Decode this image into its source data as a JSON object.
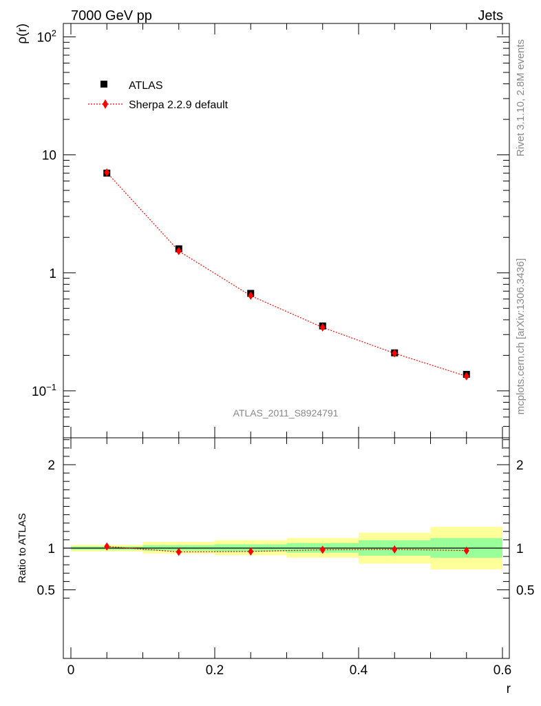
{
  "header": {
    "left_title": "7000 GeV pp",
    "right_title": "Jets"
  },
  "side_text": {
    "rivet": "Rivet 3.1.10,  2.8M events",
    "mcplots": "mcplots.cern.ch [arXiv:1306.3436]"
  },
  "analysis_label": "ATLAS_2011_S8924791",
  "colors": {
    "mc": "#ff0000",
    "data": "#000000",
    "band_inner": "#99ff99",
    "band_outer": "#ffff99"
  },
  "chart_data": [
    {
      "type": "scatter",
      "ylabel": "ρ(r)",
      "xlabel": "",
      "yscale": "log",
      "xlim": [
        0,
        0.6
      ],
      "ylim": [
        0.04,
        130
      ],
      "y_ticks": [
        {
          "value": 100,
          "base": "10",
          "exp": "2"
        },
        {
          "value": 10,
          "base": "10",
          "exp": ""
        },
        {
          "value": 1,
          "base": "1",
          "exp": ""
        },
        {
          "value": 0.1,
          "base": "10",
          "exp": "−1"
        }
      ],
      "legend": {
        "placement": "top-left",
        "entries": [
          "ATLAS",
          "Sherpa 2.2.9 default"
        ]
      },
      "series": [
        {
          "name": "ATLAS",
          "x": [
            0.05,
            0.15,
            0.25,
            0.35,
            0.45,
            0.55
          ],
          "y": [
            7.0,
            1.6,
            0.67,
            0.355,
            0.21,
            0.138
          ]
        },
        {
          "name": "Sherpa 2.2.9 default",
          "x": [
            0.05,
            0.15,
            0.25,
            0.35,
            0.45,
            0.55
          ],
          "y": [
            7.1,
            1.53,
            0.64,
            0.345,
            0.208,
            0.133
          ]
        }
      ]
    },
    {
      "type": "scatter",
      "ylabel": "Ratio to ATLAS",
      "xlabel": "r",
      "xlim": [
        0,
        0.6
      ],
      "ylim": [
        0.4,
        2.3
      ],
      "y_ticks": [
        0.5,
        1,
        2
      ],
      "y_tick_labels": [
        "0.5",
        "1",
        "2"
      ],
      "x_ticks": [
        0,
        0.2,
        0.4,
        0.6
      ],
      "x_tick_labels": [
        "0",
        "0.2",
        "0.4",
        "0.6"
      ],
      "bands": [
        {
          "x0": 0.0,
          "x1": 0.1,
          "inner": [
            0.98,
            1.02
          ],
          "outer": [
            0.96,
            1.04
          ]
        },
        {
          "x0": 0.1,
          "x1": 0.2,
          "inner": [
            0.97,
            1.035
          ],
          "outer": [
            0.935,
            1.075
          ]
        },
        {
          "x0": 0.2,
          "x1": 0.3,
          "inner": [
            0.96,
            1.045
          ],
          "outer": [
            0.915,
            1.095
          ]
        },
        {
          "x0": 0.3,
          "x1": 0.4,
          "inner": [
            0.945,
            1.06
          ],
          "outer": [
            0.885,
            1.12
          ]
        },
        {
          "x0": 0.4,
          "x1": 0.5,
          "inner": [
            0.91,
            1.095
          ],
          "outer": [
            0.815,
            1.185
          ]
        },
        {
          "x0": 0.5,
          "x1": 0.6,
          "inner": [
            0.885,
            1.12
          ],
          "outer": [
            0.745,
            1.255
          ]
        }
      ],
      "series": [
        {
          "name": "Sherpa 2.2.9 default",
          "x": [
            0.05,
            0.15,
            0.25,
            0.35,
            0.45,
            0.55
          ],
          "y": [
            1.02,
            0.955,
            0.96,
            0.98,
            0.985,
            0.97
          ]
        }
      ]
    }
  ]
}
